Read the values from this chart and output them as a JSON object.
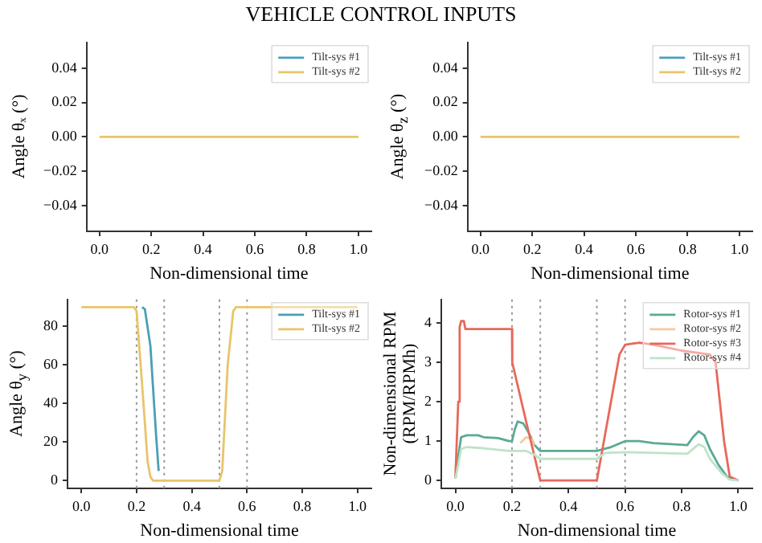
{
  "chart_data": [
    {
      "type": "line",
      "title": "VEHICLE CONTROL INPUTS",
      "xlabel": "Non-dimensional time",
      "ylabel": "Angle θₓ (°)",
      "xlim": [
        -0.05,
        1.05
      ],
      "ylim": [
        -0.055,
        0.055
      ],
      "xticks": [
        {
          "value": 0,
          "label": "0.0"
        },
        {
          "value": 0.2,
          "label": "0.2"
        },
        {
          "value": 0.4,
          "label": "0.4"
        },
        {
          "value": 0.6,
          "label": "0.6"
        },
        {
          "value": 0.8,
          "label": "0.8"
        },
        {
          "value": 1,
          "label": "1.0"
        }
      ],
      "yticks": [
        {
          "value": -0.04,
          "label": "−0.04"
        },
        {
          "value": -0.02,
          "label": "−0.02"
        },
        {
          "value": 0,
          "label": "0.00"
        },
        {
          "value": 0.02,
          "label": "0.02"
        },
        {
          "value": 0.04,
          "label": "0.04"
        }
      ],
      "legend": "top right",
      "series": [
        {
          "name": "Tilt-sys #1",
          "color": "#4a9fc2"
        },
        {
          "name": "Tilt-sys #2",
          "color": "#e9c46a",
          "x": [
            0,
            1
          ],
          "values": [
            0,
            0
          ]
        }
      ]
    },
    {
      "type": "line",
      "xlabel": "Non-dimensional time",
      "ylabel": "Angle θ$_{z}$ (°)",
      "xlim": [
        -0.05,
        1.05
      ],
      "ylim": [
        -0.055,
        0.055
      ],
      "xticks": [
        {
          "value": 0,
          "label": "0.0"
        },
        {
          "value": 0.2,
          "label": "0.2"
        },
        {
          "value": 0.4,
          "label": "0.4"
        },
        {
          "value": 0.6,
          "label": "0.6"
        },
        {
          "value": 0.8,
          "label": "0.8"
        },
        {
          "value": 1,
          "label": "1.0"
        }
      ],
      "yticks": [
        {
          "value": -0.04,
          "label": "−0.04"
        },
        {
          "value": -0.02,
          "label": "−0.02"
        },
        {
          "value": 0,
          "label": "0.00"
        },
        {
          "value": 0.02,
          "label": "0.02"
        },
        {
          "value": 0.04,
          "label": "0.04"
        }
      ],
      "legend": "top right",
      "series": [
        {
          "name": "Tilt-sys #1",
          "color": "#4a9fc2"
        },
        {
          "name": "Tilt-sys #2",
          "color": "#e9c46a",
          "x": [
            0,
            1
          ],
          "values": [
            0,
            0
          ]
        }
      ]
    },
    {
      "type": "line",
      "xlabel": "Non-dimensional time",
      "ylabel": "Angle θ$_{y}$ (°)",
      "xlim": [
        -0.05,
        1.05
      ],
      "ylim": [
        -4,
        94
      ],
      "xticks": [
        {
          "value": 0,
          "label": "0.0"
        },
        {
          "value": 0.2,
          "label": "0.2"
        },
        {
          "value": 0.4,
          "label": "0.4"
        },
        {
          "value": 0.6,
          "label": "0.6"
        },
        {
          "value": 0.8,
          "label": "0.8"
        },
        {
          "value": 1,
          "label": "1.0"
        }
      ],
      "yticks": [
        0,
        20,
        40,
        60,
        80
      ],
      "legend": "top right",
      "ref_lines": [
        {
          "axis": "x",
          "value": 0.2,
          "color": "#999999",
          "line_style": "dotted"
        },
        {
          "axis": "x",
          "value": 0.3,
          "color": "#999999",
          "line_style": "dotted"
        },
        {
          "axis": "x",
          "value": 0.5,
          "color": "#999999",
          "line_style": "dotted"
        },
        {
          "axis": "x",
          "value": 0.6,
          "color": "#999999",
          "line_style": "dotted"
        }
      ],
      "series": [
        {
          "name": "Tilt-sys #1",
          "color": "#4a9fb5",
          "x": [
            0.22,
            0.23,
            0.25,
            0.27,
            0.28
          ],
          "values": [
            90,
            89,
            70,
            25,
            5
          ]
        },
        {
          "name": "Tilt-sys #2",
          "color": "#e9c46a",
          "x": [
            0,
            0.19,
            0.2,
            0.22,
            0.24,
            0.25,
            0.26,
            0.5,
            0.51,
            0.53,
            0.55,
            0.56,
            1.0
          ],
          "values": [
            90,
            90,
            88,
            50,
            10,
            2,
            0,
            0,
            5,
            60,
            88,
            90,
            90
          ]
        }
      ]
    },
    {
      "type": "line",
      "xlabel": "Non-dimensional time",
      "ylabel": "Non-dimensional RPM (RPM/RPMh)",
      "xlim": [
        -0.05,
        1.05
      ],
      "ylim": [
        -0.2,
        4.6
      ],
      "xticks": [
        {
          "value": 0,
          "label": "0.0"
        },
        {
          "value": 0.2,
          "label": "0.2"
        },
        {
          "value": 0.4,
          "label": "0.4"
        },
        {
          "value": 0.6,
          "label": "0.6"
        },
        {
          "value": 0.8,
          "label": "0.8"
        },
        {
          "value": 1,
          "label": "1.0"
        }
      ],
      "yticks": [
        0,
        1,
        2,
        3,
        4
      ],
      "legend": "top right",
      "ref_lines": [
        {
          "axis": "x",
          "value": 0.2,
          "color": "#999999",
          "line_style": "dotted"
        },
        {
          "axis": "x",
          "value": 0.3,
          "color": "#999999",
          "line_style": "dotted"
        },
        {
          "axis": "x",
          "value": 0.5,
          "color": "#999999",
          "line_style": "dotted"
        },
        {
          "axis": "x",
          "value": 0.6,
          "color": "#999999",
          "line_style": "dotted"
        }
      ],
      "series": [
        {
          "name": "Rotor-sys #1",
          "color": "#5aaa95",
          "x": [
            0,
            0.01,
            0.02,
            0.04,
            0.08,
            0.1,
            0.15,
            0.19,
            0.2,
            0.21,
            0.22,
            0.24,
            0.26,
            0.28,
            0.3,
            0.5,
            0.55,
            0.6,
            0.65,
            0.7,
            0.82,
            0.84,
            0.86,
            0.88,
            0.9,
            0.93,
            0.96,
            1.0
          ],
          "values": [
            0.05,
            0.6,
            1.1,
            1.15,
            1.15,
            1.1,
            1.08,
            1.0,
            1.0,
            1.3,
            1.5,
            1.45,
            1.2,
            0.9,
            0.75,
            0.75,
            0.85,
            1.0,
            1.0,
            0.95,
            0.9,
            1.1,
            1.25,
            1.15,
            0.8,
            0.4,
            0.1,
            0
          ]
        },
        {
          "name": "Rotor-sys #2",
          "color": "#f6c89f",
          "x": [
            0.23,
            0.25,
            0.27,
            0.28
          ],
          "values": [
            0.95,
            1.1,
            1.05,
            0.9
          ]
        },
        {
          "name": "Rotor-sys #3",
          "color": "#e8685a",
          "x": [
            0,
            0.01,
            0.015,
            0.02,
            0.03,
            0.035,
            0.2,
            0.201,
            0.25,
            0.3,
            0.5,
            0.55,
            0.58,
            0.6,
            0.65,
            0.7,
            0.8,
            0.9,
            0.92,
            0.95,
            0.97,
            1.0
          ],
          "values": [
            0.1,
            2,
            3.9,
            4.05,
            4.05,
            3.85,
            3.85,
            3.0,
            1.5,
            0,
            0,
            2.0,
            3.2,
            3.45,
            3.5,
            3.45,
            3.3,
            3.2,
            3.0,
            1.0,
            0.1,
            0
          ]
        },
        {
          "name": "Rotor-sys #4",
          "color": "#bfe3c8",
          "x": [
            0,
            0.01,
            0.02,
            0.04,
            0.1,
            0.19,
            0.2,
            0.22,
            0.25,
            0.28,
            0.3,
            0.5,
            0.53,
            0.6,
            0.82,
            0.86,
            0.88,
            0.9,
            0.94,
            0.97,
            1.0
          ],
          "values": [
            0.05,
            0.4,
            0.8,
            0.85,
            0.82,
            0.75,
            0.75,
            0.75,
            0.75,
            0.65,
            0.55,
            0.55,
            0.7,
            0.72,
            0.68,
            0.92,
            0.85,
            0.55,
            0.2,
            0.02,
            0
          ]
        }
      ]
    }
  ]
}
